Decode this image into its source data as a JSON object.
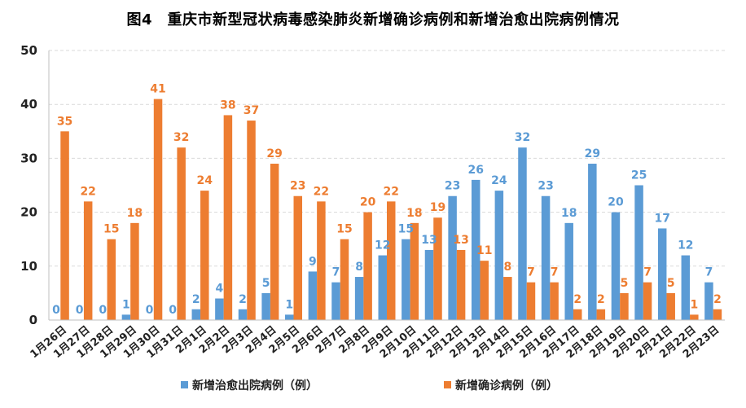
{
  "chart_data": {
    "type": "bar",
    "title": "图4　重庆市新型冠状病毒感染肺炎新增确诊病例和新增治愈出院病例情况",
    "categories": [
      "1月26日",
      "1月27日",
      "1月28日",
      "1月29日",
      "1月30日",
      "1月31日",
      "2月1日",
      "2月2日",
      "2月3日",
      "2月4日",
      "2月5日",
      "2月6日",
      "2月7日",
      "2月8日",
      "2月9日",
      "2月10日",
      "2月11日",
      "2月12日",
      "2月13日",
      "2月14日",
      "2月15日",
      "2月16日",
      "2月17日",
      "2月18日",
      "2月19日",
      "2月20日",
      "2月21日",
      "2月22日",
      "2月23日"
    ],
    "series": [
      {
        "name": "新增治愈出院病例（例）",
        "color": "#5B9BD5",
        "values": [
          0,
          0,
          0,
          1,
          0,
          0,
          2,
          4,
          2,
          5,
          1,
          9,
          7,
          8,
          12,
          15,
          13,
          23,
          26,
          24,
          32,
          23,
          18,
          29,
          20,
          25,
          17,
          12,
          7
        ]
      },
      {
        "name": "新增确诊病例（例）",
        "color": "#ED7D31",
        "values": [
          35,
          22,
          15,
          18,
          41,
          32,
          24,
          38,
          37,
          29,
          23,
          22,
          15,
          20,
          22,
          18,
          19,
          13,
          11,
          8,
          7,
          7,
          2,
          2,
          5,
          7,
          5,
          1,
          2
        ]
      }
    ],
    "ylim": [
      0,
      50
    ],
    "yticks": [
      0,
      10,
      20,
      30,
      40,
      50
    ],
    "grid": true,
    "legend_position": "bottom"
  }
}
